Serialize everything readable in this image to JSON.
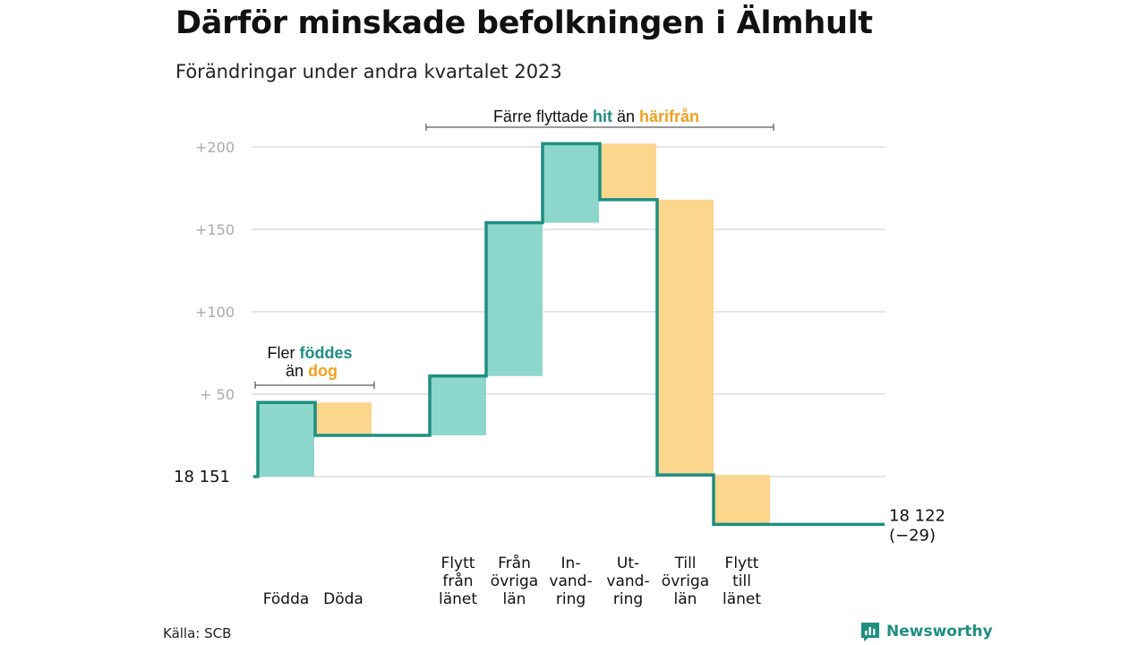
{
  "title": "Därför minskade befolkningen i Älmhult",
  "subtitle": "Förändringar under andra kvartalet 2023",
  "source": "Källa: SCB",
  "brand": "Newsworthy",
  "colors": {
    "positive": "#8dd6cc",
    "negative": "#fbd68d",
    "line": "#1f8f80",
    "accent_orange": "#f0a020",
    "grid": "#dddddd"
  },
  "annotations": {
    "births": {
      "line1_prefix": "Fler",
      "line1_highlight": "föddes",
      "line2_prefix": "än",
      "line2_highlight": "dog"
    },
    "migration": {
      "prefix": "Färre flyttade",
      "highlight1": "hit",
      "middle": "än",
      "highlight2": "härifrån"
    }
  },
  "chart_data": {
    "type": "waterfall",
    "start_value": 18151,
    "start_label": "18  151",
    "end_value": 18122,
    "end_label": "18 122",
    "end_change_label": "(−29)",
    "y_tick_labels": [
      "+  50",
      "+100",
      "+150",
      "+200"
    ],
    "y_ticks": [
      50,
      100,
      150,
      200
    ],
    "ylim": [
      -30,
      205
    ],
    "steps": [
      {
        "label": [
          "Födda"
        ],
        "value": 45,
        "kind": "positive"
      },
      {
        "label": [
          "Döda"
        ],
        "value": -20,
        "kind": "negative"
      },
      {
        "label": [
          "Flytt",
          "från",
          "länet"
        ],
        "value": 36,
        "kind": "positive"
      },
      {
        "label": [
          "Från",
          "övriga",
          "län"
        ],
        "value": 93,
        "kind": "positive"
      },
      {
        "label": [
          "In-",
          "vand-",
          "ring"
        ],
        "value": 48,
        "kind": "positive"
      },
      {
        "label": [
          "Ut-",
          "vand-",
          "ring"
        ],
        "value": -34,
        "kind": "negative"
      },
      {
        "label": [
          "Till",
          "övriga",
          "län"
        ],
        "value": -167,
        "kind": "negative"
      },
      {
        "label": [
          "Flytt",
          "till",
          "länet"
        ],
        "value": -30,
        "kind": "negative"
      }
    ]
  }
}
